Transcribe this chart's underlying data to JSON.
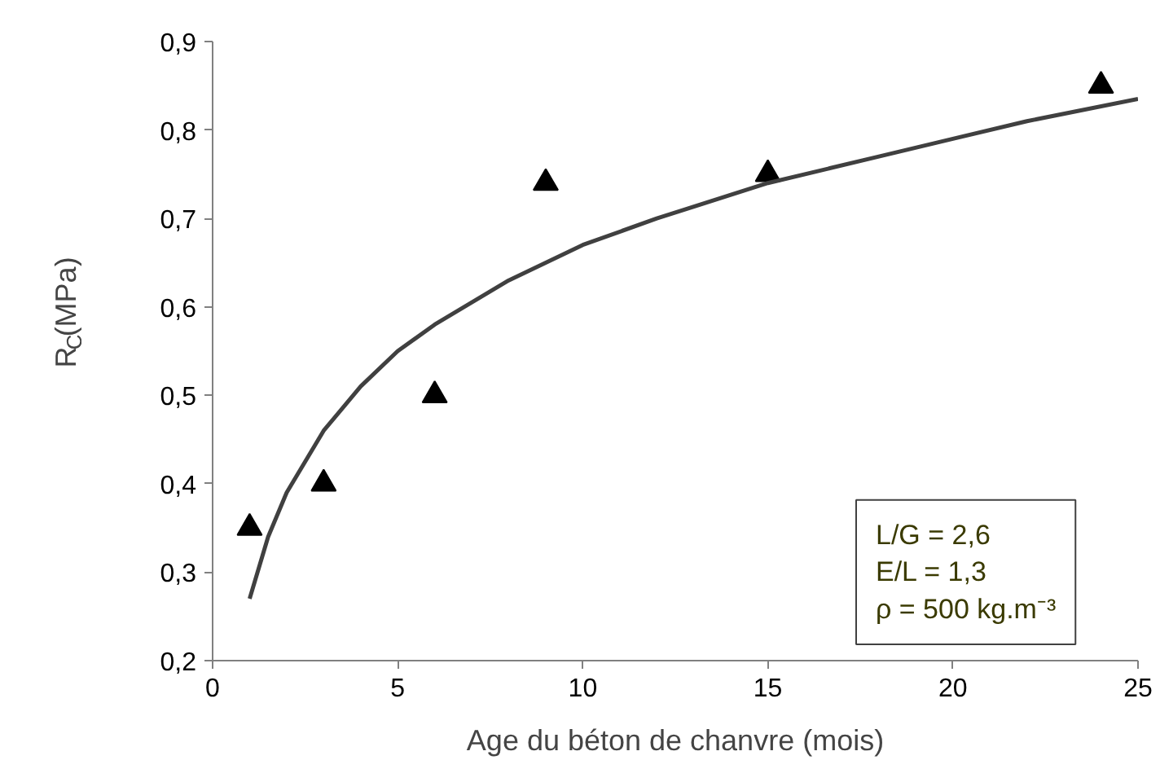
{
  "chart_data": {
    "type": "scatter",
    "xlabel": "Age du béton de chanvre (mois)",
    "ylabel": "R$_{C}$(MPa)",
    "xlim": [
      0,
      25
    ],
    "ylim": [
      0.2,
      0.9
    ],
    "xticks": [
      0,
      5,
      10,
      15,
      20,
      25
    ],
    "yticks": [
      {
        "value": 0.2,
        "label": "0,2"
      },
      {
        "value": 0.3,
        "label": "0,3"
      },
      {
        "value": 0.4,
        "label": "0,4"
      },
      {
        "value": 0.5,
        "label": "0,5"
      },
      {
        "value": 0.6,
        "label": "0,6"
      },
      {
        "value": 0.7,
        "label": "0,7"
      },
      {
        "value": 0.8,
        "label": "0,8"
      },
      {
        "value": 0.9,
        "label": "0,9"
      }
    ],
    "grid": false,
    "marker": "triangle",
    "series": [
      {
        "color": "#000000",
        "x": [
          1,
          3,
          6,
          9,
          15,
          24
        ],
        "values": [
          0.35,
          0.4,
          0.5,
          0.74,
          0.75,
          0.85
        ]
      },
      {
        "type": "line",
        "color": "#404040",
        "marker": "none",
        "x": [
          1,
          1.5,
          2,
          3,
          4,
          5,
          6,
          8,
          10,
          12,
          15,
          18,
          20,
          22,
          25
        ],
        "values": [
          0.27,
          0.34,
          0.39,
          0.46,
          0.51,
          0.55,
          0.58,
          0.63,
          0.67,
          0.7,
          0.74,
          0.77,
          0.79,
          0.81,
          0.835
        ]
      }
    ],
    "annotations": [
      "L/G = 2,6",
      "E/L = 1,3",
      "ρ = 500 kg.m⁻³"
    ]
  }
}
